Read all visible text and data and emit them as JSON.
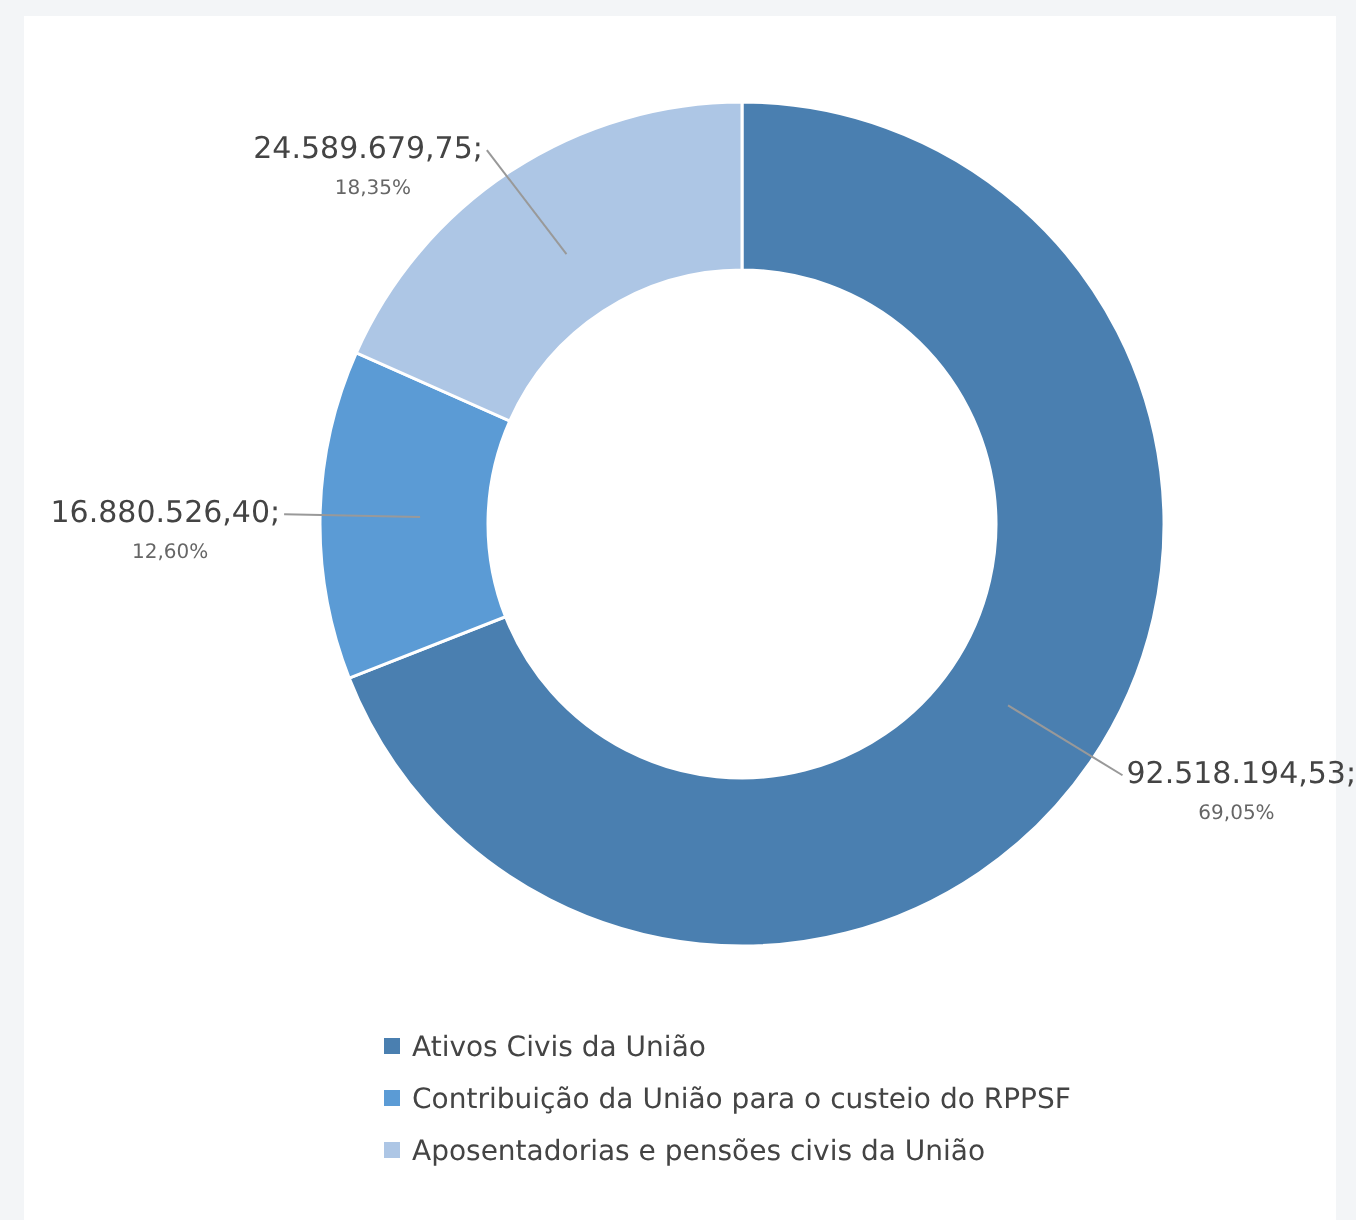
{
  "chart_data": {
    "type": "donut",
    "categories": [
      "Ativos Civis da União",
      "Contribuição da União para o custeio do RPPSF",
      "Aposentadorias e pensões civis da União"
    ],
    "values": [
      92518194.53,
      16880526.4,
      24589679.75
    ],
    "colors": [
      "#4a7fb0",
      "#5b9bd5",
      "#adc6e5"
    ],
    "value_labels": [
      "92.518.194,53;\n69,05%",
      "16.880.526,40;\n12,60%",
      "24.589.679,75;\n18,35%"
    ],
    "legend": "bottom"
  }
}
